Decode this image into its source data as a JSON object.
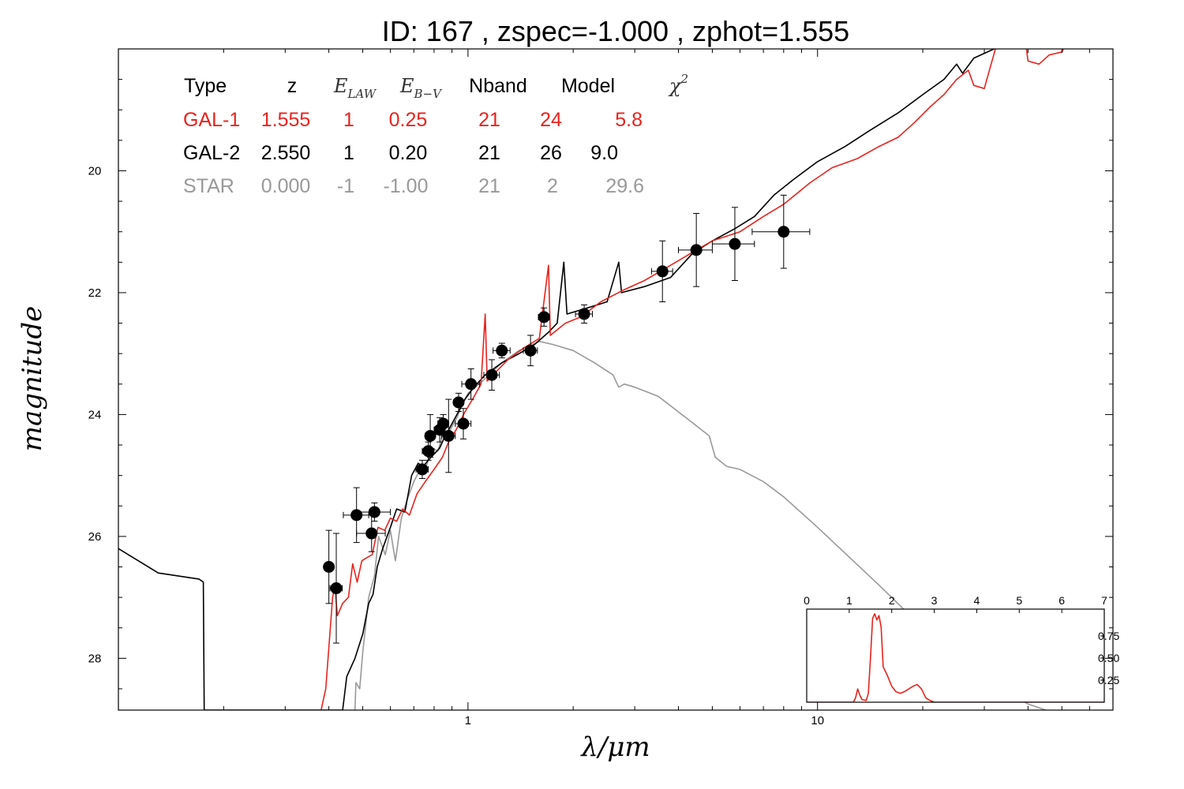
{
  "chart_data": {
    "type": "line",
    "title": "ID:  167   , zspec=-1.000 , zphot=1.555",
    "xlabel": "λ/μm",
    "ylabel": "magnitude",
    "xscale": "log",
    "xlim": [
      0.1,
      70
    ],
    "ylim": [
      28.85,
      18.0
    ],
    "y_inverted": true,
    "x_ticks": [
      {
        "value": 1,
        "label": "1"
      },
      {
        "value": 10,
        "label": "10"
      }
    ],
    "y_ticks": [
      {
        "value": 20,
        "label": "20"
      },
      {
        "value": 22,
        "label": "22"
      },
      {
        "value": 24,
        "label": "24"
      },
      {
        "value": 26,
        "label": "26"
      },
      {
        "value": 28,
        "label": "28"
      }
    ],
    "legend_table": {
      "placement": "top-left",
      "headers": {
        "type": "Type",
        "z": "z",
        "e_law": "E",
        "e_law_sub": "LAW",
        "e_bv": "E",
        "e_bv_sub": "B−V",
        "nband": "Nband",
        "model": "Model",
        "chi2": "χ",
        "chi2_sup": "2"
      },
      "rows": [
        {
          "type": "GAL-1",
          "z": "1.555",
          "e_law": "1",
          "e_bv": "0.25",
          "nband": "21",
          "model": "24",
          "chi2": "5.8",
          "color": "#e8231e"
        },
        {
          "type": "GAL-2",
          "z": "2.550",
          "e_law": "1",
          "e_bv": "0.20",
          "nband": "21",
          "model": "26",
          "chi2": "9.0",
          "color": "#000000"
        },
        {
          "type": "STAR",
          "z": "0.000",
          "e_law": "-1",
          "e_bv": "-1.00",
          "nband": "21",
          "model": "2",
          "chi2": "29.6",
          "color": "#999999"
        }
      ]
    },
    "series": [
      {
        "color": "#e8231e",
        "points": [
          [
            0.38,
            28.85
          ],
          [
            0.392,
            28.5
          ],
          [
            0.41,
            27.0
          ],
          [
            0.416,
            26.8
          ],
          [
            0.423,
            27.3
          ],
          [
            0.438,
            27.1
          ],
          [
            0.455,
            27.0
          ],
          [
            0.468,
            26.45
          ],
          [
            0.482,
            26.75
          ],
          [
            0.497,
            26.4
          ],
          [
            0.513,
            26.35
          ],
          [
            0.532,
            26.3
          ],
          [
            0.553,
            25.85
          ],
          [
            0.578,
            25.9
          ],
          [
            0.6,
            25.7
          ],
          [
            0.625,
            25.75
          ],
          [
            0.65,
            25.55
          ],
          [
            0.68,
            25.65
          ],
          [
            0.715,
            25.3
          ],
          [
            0.755,
            25.1
          ],
          [
            0.8,
            24.9
          ],
          [
            0.845,
            24.7
          ],
          [
            0.88,
            24.45
          ],
          [
            0.925,
            24.25
          ],
          [
            0.975,
            23.98
          ],
          [
            1.03,
            23.75
          ],
          [
            1.09,
            23.5
          ],
          [
            1.12,
            22.35
          ],
          [
            1.135,
            23.45
          ],
          [
            1.18,
            23.35
          ],
          [
            1.3,
            23.1
          ],
          [
            1.45,
            22.9
          ],
          [
            1.6,
            22.75
          ],
          [
            1.7,
            21.55
          ],
          [
            1.72,
            22.7
          ],
          [
            1.9,
            22.5
          ],
          [
            2.1,
            22.4
          ],
          [
            2.4,
            22.15
          ],
          [
            2.8,
            21.95
          ],
          [
            3.2,
            21.8
          ],
          [
            3.8,
            21.55
          ],
          [
            4.5,
            21.3
          ],
          [
            5.0,
            21.15
          ],
          [
            6.0,
            21.0
          ],
          [
            7.0,
            20.75
          ],
          [
            8.0,
            20.55
          ],
          [
            9.5,
            20.2
          ],
          [
            11.0,
            19.95
          ],
          [
            13.0,
            19.8
          ],
          [
            15.0,
            19.6
          ],
          [
            17.0,
            19.45
          ],
          [
            19.0,
            19.2
          ],
          [
            21.0,
            18.95
          ],
          [
            23.0,
            18.75
          ],
          [
            25.0,
            18.5
          ],
          [
            27.0,
            18.35
          ],
          [
            28.0,
            18.6
          ],
          [
            30.0,
            18.65
          ],
          [
            33.0,
            17.8
          ],
          [
            35.0,
            17.3
          ],
          [
            38.0,
            17.2
          ],
          [
            40.0,
            18.2
          ],
          [
            43.0,
            18.25
          ],
          [
            46.0,
            18.1
          ],
          [
            50.0,
            18.05
          ],
          [
            55.0,
            17.6
          ],
          [
            58.0,
            17.45
          ],
          [
            62.0,
            17.2
          ]
        ]
      },
      {
        "color": "#000000",
        "points": [
          [
            0.1,
            26.2
          ],
          [
            0.13,
            26.6
          ],
          [
            0.17,
            26.7
          ],
          [
            0.175,
            26.75
          ],
          [
            0.176,
            28.85
          ],
          [
            0.438,
            28.85
          ],
          [
            0.45,
            28.3
          ],
          [
            0.475,
            28.0
          ],
          [
            0.5,
            27.6
          ],
          [
            0.52,
            27.1
          ],
          [
            0.535,
            26.95
          ],
          [
            0.55,
            26.5
          ],
          [
            0.57,
            26.2
          ],
          [
            0.6,
            25.85
          ],
          [
            0.625,
            25.55
          ],
          [
            0.66,
            25.6
          ],
          [
            0.69,
            25.0
          ],
          [
            0.72,
            24.8
          ],
          [
            0.745,
            24.85
          ],
          [
            0.77,
            24.75
          ],
          [
            0.8,
            24.65
          ],
          [
            0.83,
            24.55
          ],
          [
            0.86,
            24.35
          ],
          [
            0.89,
            24.2
          ],
          [
            0.93,
            24.0
          ],
          [
            0.98,
            23.75
          ],
          [
            1.04,
            23.55
          ],
          [
            1.12,
            23.35
          ],
          [
            1.25,
            23.15
          ],
          [
            1.4,
            23.0
          ],
          [
            1.55,
            22.85
          ],
          [
            1.7,
            22.65
          ],
          [
            1.8,
            22.5
          ],
          [
            1.88,
            21.5
          ],
          [
            1.92,
            22.35
          ],
          [
            2.2,
            22.25
          ],
          [
            2.5,
            22.15
          ],
          [
            2.7,
            21.5
          ],
          [
            2.75,
            22.0
          ],
          [
            3.2,
            21.9
          ],
          [
            3.8,
            21.75
          ],
          [
            4.4,
            21.35
          ],
          [
            5.0,
            21.15
          ],
          [
            5.8,
            20.95
          ],
          [
            6.6,
            20.75
          ],
          [
            7.5,
            20.4
          ],
          [
            8.5,
            20.15
          ],
          [
            10.0,
            19.85
          ],
          [
            12.0,
            19.6
          ],
          [
            14.0,
            19.35
          ],
          [
            17.0,
            19.05
          ],
          [
            20.0,
            18.75
          ],
          [
            23.0,
            18.5
          ],
          [
            25.0,
            18.25
          ],
          [
            26.0,
            18.4
          ],
          [
            28.0,
            18.15
          ],
          [
            32.0,
            18.0
          ],
          [
            35.0,
            17.85
          ],
          [
            37.0,
            17.6
          ],
          [
            40.0,
            17.35
          ],
          [
            44.0,
            17.75
          ],
          [
            50.0,
            17.55
          ],
          [
            55.0,
            17.55
          ],
          [
            60.0,
            17.45
          ],
          [
            65.0,
            17.2
          ]
        ]
      },
      {
        "color": "#999999",
        "points": [
          [
            0.475,
            28.85
          ],
          [
            0.478,
            28.4
          ],
          [
            0.49,
            28.5
          ],
          [
            0.5,
            27.9
          ],
          [
            0.52,
            27.0
          ],
          [
            0.54,
            26.65
          ],
          [
            0.555,
            26.0
          ],
          [
            0.58,
            26.3
          ],
          [
            0.6,
            25.9
          ],
          [
            0.62,
            26.4
          ],
          [
            0.645,
            25.7
          ],
          [
            0.67,
            25.4
          ],
          [
            0.7,
            25.1
          ],
          [
            0.73,
            24.9
          ],
          [
            0.76,
            24.85
          ],
          [
            0.79,
            24.55
          ],
          [
            0.82,
            24.6
          ],
          [
            0.85,
            24.3
          ],
          [
            0.89,
            24.25
          ],
          [
            0.93,
            24.05
          ],
          [
            0.96,
            23.85
          ],
          [
            1.0,
            23.65
          ],
          [
            1.05,
            23.55
          ],
          [
            1.1,
            23.45
          ],
          [
            1.25,
            23.15
          ],
          [
            1.4,
            22.95
          ],
          [
            1.6,
            22.8
          ],
          [
            1.75,
            22.85
          ],
          [
            2.0,
            22.95
          ],
          [
            2.3,
            23.15
          ],
          [
            2.6,
            23.35
          ],
          [
            2.7,
            23.55
          ],
          [
            2.8,
            23.5
          ],
          [
            3.0,
            23.55
          ],
          [
            3.5,
            23.7
          ],
          [
            4.2,
            24.05
          ],
          [
            4.9,
            24.35
          ],
          [
            5.1,
            24.7
          ],
          [
            5.5,
            24.85
          ],
          [
            6.0,
            24.9
          ],
          [
            7.0,
            25.1
          ],
          [
            8.0,
            25.35
          ],
          [
            10.0,
            25.85
          ],
          [
            15.0,
            26.8
          ],
          [
            20.0,
            27.5
          ],
          [
            30.0,
            28.3
          ],
          [
            40.0,
            28.75
          ],
          [
            45.0,
            28.85
          ]
        ]
      }
    ],
    "photometry": [
      {
        "x": 0.4,
        "y": 26.5,
        "xerr": 0.012,
        "yerr": 0.6
      },
      {
        "x": 0.42,
        "y": 26.85,
        "xerr": 0.017,
        "yerr": 0.9
      },
      {
        "x": 0.48,
        "y": 25.65,
        "xerr": 0.04,
        "yerr": 0.45
      },
      {
        "x": 0.53,
        "y": 25.95,
        "xerr": 0.05,
        "yerr": 0.3
      },
      {
        "x": 0.54,
        "y": 25.6,
        "xerr": 0.06,
        "yerr": 0.15
      },
      {
        "x": 0.74,
        "y": 24.9,
        "xerr": 0.03,
        "yerr": 0.15
      },
      {
        "x": 0.77,
        "y": 24.6,
        "xerr": 0.03,
        "yerr": 0.15
      },
      {
        "x": 0.78,
        "y": 24.35,
        "xerr": 0.025,
        "yerr": 0.35
      },
      {
        "x": 0.83,
        "y": 24.25,
        "xerr": 0.03,
        "yerr": 0.2
      },
      {
        "x": 0.85,
        "y": 24.15,
        "xerr": 0.03,
        "yerr": 0.15
      },
      {
        "x": 0.88,
        "y": 24.35,
        "xerr": 0.04,
        "yerr": 0.6
      },
      {
        "x": 0.94,
        "y": 23.8,
        "xerr": 0.03,
        "yerr": 0.15
      },
      {
        "x": 0.97,
        "y": 24.15,
        "xerr": 0.05,
        "yerr": 0.25
      },
      {
        "x": 1.02,
        "y": 23.5,
        "xerr": 0.06,
        "yerr": 0.25
      },
      {
        "x": 1.17,
        "y": 23.35,
        "xerr": 0.06,
        "yerr": 0.25
      },
      {
        "x": 1.25,
        "y": 22.95,
        "xerr": 0.07,
        "yerr": 0.12
      },
      {
        "x": 1.51,
        "y": 22.95,
        "xerr": 0.07,
        "yerr": 0.25
      },
      {
        "x": 1.65,
        "y": 22.4,
        "xerr": 0.06,
        "yerr": 0.15
      },
      {
        "x": 2.15,
        "y": 22.35,
        "xerr": 0.12,
        "yerr": 0.15
      },
      {
        "x": 3.6,
        "y": 21.65,
        "xerr": 0.25,
        "yerr": 0.5
      },
      {
        "x": 4.5,
        "y": 21.3,
        "xerr": 0.5,
        "yerr": 0.6
      },
      {
        "x": 5.8,
        "y": 21.2,
        "xerr": 0.8,
        "yerr": 0.6
      },
      {
        "x": 8.0,
        "y": 21.0,
        "xerr": 1.5,
        "yerr": 0.6
      }
    ],
    "inset": {
      "type": "line",
      "placement": "bottom-right",
      "xlim": [
        0,
        7
      ],
      "ylim": [
        0,
        1.0
      ],
      "x_ticks": [
        {
          "value": 0,
          "label": "0"
        },
        {
          "value": 1,
          "label": "1"
        },
        {
          "value": 2,
          "label": "2"
        },
        {
          "value": 3,
          "label": "3"
        },
        {
          "value": 4,
          "label": "4"
        },
        {
          "value": 5,
          "label": "5"
        },
        {
          "value": 6,
          "label": "6"
        },
        {
          "value": 7,
          "label": "7"
        }
      ],
      "y_ticks": [
        {
          "value": 0.25,
          "label": "0.25"
        },
        {
          "value": 0.5,
          "label": "0.50"
        },
        {
          "value": 0.75,
          "label": "0.75"
        }
      ],
      "series": [
        {
          "color": "#e8231e",
          "points": [
            [
              0,
              0
            ],
            [
              1.1,
              0
            ],
            [
              1.15,
              0.05
            ],
            [
              1.2,
              0.15
            ],
            [
              1.25,
              0.08
            ],
            [
              1.3,
              0.03
            ],
            [
              1.4,
              0.02
            ],
            [
              1.45,
              0.1
            ],
            [
              1.5,
              0.5
            ],
            [
              1.55,
              0.95
            ],
            [
              1.6,
              1.0
            ],
            [
              1.65,
              0.93
            ],
            [
              1.7,
              0.98
            ],
            [
              1.75,
              0.85
            ],
            [
              1.8,
              0.4
            ],
            [
              1.9,
              0.3
            ],
            [
              2.0,
              0.18
            ],
            [
              2.1,
              0.12
            ],
            [
              2.2,
              0.1
            ],
            [
              2.3,
              0.12
            ],
            [
              2.4,
              0.15
            ],
            [
              2.5,
              0.18
            ],
            [
              2.6,
              0.2
            ],
            [
              2.7,
              0.15
            ],
            [
              2.8,
              0.05
            ],
            [
              2.9,
              0.02
            ],
            [
              3.0,
              0
            ],
            [
              7.0,
              0
            ]
          ]
        }
      ]
    }
  }
}
